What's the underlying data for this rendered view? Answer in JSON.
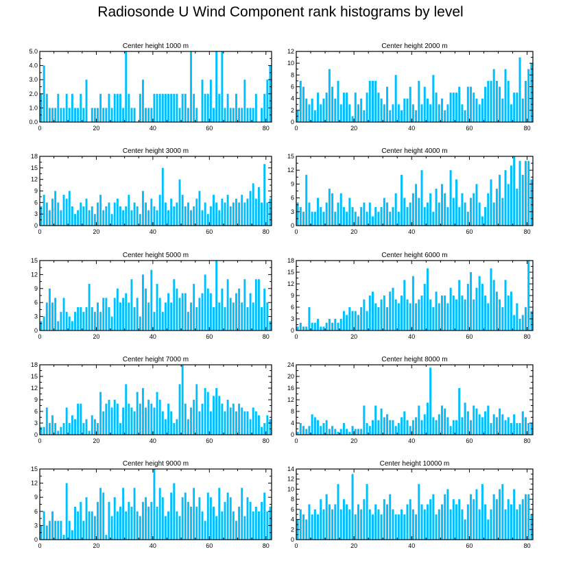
{
  "title": "Radiosonde U Wind Component rank histograms by level",
  "bar_color": "#00bfff",
  "chart_data": [
    {
      "type": "bar",
      "title": "Center height 1000 m",
      "xlim": [
        0,
        82
      ],
      "ylim": [
        0,
        5
      ],
      "xticks": [
        {
          "value": 0,
          "label": "0"
        },
        {
          "value": 20,
          "label": "20"
        },
        {
          "value": 40,
          "label": "40"
        },
        {
          "value": 60,
          "label": "60"
        },
        {
          "value": 80,
          "label": "80"
        }
      ],
      "yticks": [
        {
          "value": 0,
          "label": "0.0"
        },
        {
          "value": 1,
          "label": "1.0"
        },
        {
          "value": 2,
          "label": "2.0"
        },
        {
          "value": 3,
          "label": "3.0"
        },
        {
          "value": 4,
          "label": "4.0"
        },
        {
          "value": 5,
          "label": "5.0"
        }
      ],
      "yaxis_side": "left",
      "values": [
        2,
        4,
        2,
        1,
        1,
        1,
        2,
        1,
        1,
        2,
        1,
        2,
        1,
        1,
        2,
        1,
        3,
        0,
        1,
        1,
        1,
        2,
        1,
        1,
        2,
        1,
        2,
        2,
        2,
        1,
        5,
        2,
        1,
        1,
        0,
        2,
        3,
        1,
        1,
        1,
        2,
        2,
        2,
        2,
        2,
        2,
        2,
        2,
        2,
        1,
        2,
        2,
        1,
        5,
        2,
        1,
        0,
        3,
        2,
        2,
        3,
        1,
        5,
        2,
        5,
        1,
        2,
        1,
        1,
        2,
        1,
        1,
        3,
        1,
        1,
        1,
        2,
        0,
        1,
        2,
        3,
        4
      ]
    },
    {
      "type": "bar",
      "title": "Center height 2000 m",
      "xlim": [
        0,
        82
      ],
      "ylim": [
        0,
        12
      ],
      "xticks": [
        {
          "value": 0,
          "label": "0"
        },
        {
          "value": 20,
          "label": "20"
        },
        {
          "value": 40,
          "label": "40"
        },
        {
          "value": 60,
          "label": "60"
        },
        {
          "value": 80,
          "label": "80"
        }
      ],
      "yticks": [
        {
          "value": 0,
          "label": "0"
        },
        {
          "value": 2,
          "label": "2"
        },
        {
          "value": 4,
          "label": "4"
        },
        {
          "value": 6,
          "label": "6"
        },
        {
          "value": 8,
          "label": "8"
        },
        {
          "value": 10,
          "label": "10"
        },
        {
          "value": 12,
          "label": "12"
        }
      ],
      "yaxis_side": "right",
      "values": [
        2,
        7,
        6,
        4,
        3,
        4,
        2,
        5,
        3,
        4,
        5,
        9,
        6,
        4,
        7,
        3,
        5,
        5,
        3,
        1,
        5,
        3,
        4,
        2,
        5,
        7,
        7,
        7,
        5,
        4,
        3,
        6,
        2,
        3,
        8,
        3,
        2,
        4,
        4,
        6,
        3,
        2,
        7,
        3,
        6,
        4,
        3,
        8,
        5,
        3,
        4,
        2,
        3,
        5,
        5,
        5,
        6,
        3,
        2,
        6,
        6,
        5,
        4,
        3,
        4,
        6,
        7,
        7,
        9,
        7,
        6,
        4,
        9,
        7,
        3,
        5,
        5,
        11,
        4,
        7,
        9,
        10
      ]
    },
    {
      "type": "bar",
      "title": "Center height 3000 m",
      "xlim": [
        0,
        82
      ],
      "ylim": [
        0,
        18
      ],
      "xticks": [
        {
          "value": 0,
          "label": "0"
        },
        {
          "value": 20,
          "label": "20"
        },
        {
          "value": 40,
          "label": "40"
        },
        {
          "value": 60,
          "label": "60"
        },
        {
          "value": 80,
          "label": "80"
        }
      ],
      "yticks": [
        {
          "value": 0,
          "label": "0"
        },
        {
          "value": 3,
          "label": "3"
        },
        {
          "value": 6,
          "label": "6"
        },
        {
          "value": 9,
          "label": "9"
        },
        {
          "value": 12,
          "label": "12"
        },
        {
          "value": 15,
          "label": "15"
        },
        {
          "value": 18,
          "label": "18"
        }
      ],
      "yaxis_side": "left",
      "values": [
        5,
        8,
        6,
        4,
        7,
        9,
        6,
        4,
        8,
        7,
        9,
        5,
        3,
        4,
        6,
        5,
        7,
        4,
        5,
        3,
        6,
        8,
        4,
        5,
        6,
        3,
        6,
        7,
        5,
        4,
        5,
        8,
        4,
        6,
        5,
        3,
        9,
        6,
        4,
        7,
        5,
        4,
        8,
        15,
        6,
        4,
        7,
        5,
        6,
        12,
        8,
        5,
        6,
        4,
        5,
        7,
        9,
        4,
        6,
        3,
        5,
        8,
        6,
        4,
        7,
        6,
        8,
        5,
        6,
        7,
        6,
        8,
        6,
        7,
        9,
        11,
        7,
        10,
        6,
        16,
        6,
        7
      ]
    },
    {
      "type": "bar",
      "title": "Center height 4000 m",
      "xlim": [
        0,
        82
      ],
      "ylim": [
        0,
        15
      ],
      "xticks": [
        {
          "value": 0,
          "label": "0"
        },
        {
          "value": 20,
          "label": "20"
        },
        {
          "value": 40,
          "label": "40"
        },
        {
          "value": 60,
          "label": "60"
        },
        {
          "value": 80,
          "label": "80"
        }
      ],
      "yticks": [
        {
          "value": 0,
          "label": "0"
        },
        {
          "value": 3,
          "label": "3"
        },
        {
          "value": 6,
          "label": "6"
        },
        {
          "value": 9,
          "label": "9"
        },
        {
          "value": 12,
          "label": "12"
        },
        {
          "value": 15,
          "label": "15"
        }
      ],
      "yaxis_side": "right",
      "values": [
        5,
        4,
        3,
        11,
        5,
        3,
        3,
        6,
        4,
        3,
        5,
        8,
        7,
        3,
        5,
        7,
        4,
        3,
        6,
        4,
        3,
        2,
        4,
        5,
        3,
        5,
        2,
        4,
        3,
        4,
        6,
        5,
        3,
        4,
        7,
        3,
        11,
        6,
        4,
        5,
        7,
        9,
        6,
        12,
        4,
        5,
        7,
        3,
        8,
        5,
        9,
        7,
        4,
        12,
        6,
        10,
        4,
        7,
        5,
        3,
        6,
        7,
        9,
        5,
        2,
        4,
        7,
        10,
        5,
        8,
        11,
        6,
        12,
        9,
        13,
        15,
        8,
        14,
        11,
        14,
        14,
        10
      ]
    },
    {
      "type": "bar",
      "title": "Center height 5000 m",
      "xlim": [
        0,
        82
      ],
      "ylim": [
        0,
        15
      ],
      "xticks": [
        {
          "value": 0,
          "label": "0"
        },
        {
          "value": 20,
          "label": "20"
        },
        {
          "value": 40,
          "label": "40"
        },
        {
          "value": 60,
          "label": "60"
        },
        {
          "value": 80,
          "label": "80"
        }
      ],
      "yticks": [
        {
          "value": 0,
          "label": "0"
        },
        {
          "value": 3,
          "label": "3"
        },
        {
          "value": 6,
          "label": "6"
        },
        {
          "value": 9,
          "label": "9"
        },
        {
          "value": 12,
          "label": "12"
        },
        {
          "value": 15,
          "label": "15"
        }
      ],
      "yaxis_side": "left",
      "values": [
        2,
        3,
        6,
        9,
        6,
        7,
        2,
        4,
        7,
        4,
        3,
        2,
        4,
        5,
        5,
        4,
        5,
        10,
        5,
        4,
        6,
        4,
        7,
        7,
        5,
        3,
        7,
        9,
        6,
        7,
        8,
        6,
        11,
        5,
        7,
        3,
        12,
        9,
        6,
        13,
        4,
        10,
        7,
        4,
        6,
        8,
        6,
        11,
        9,
        7,
        8,
        8,
        4,
        6,
        10,
        5,
        7,
        8,
        12,
        9,
        8,
        5,
        15,
        6,
        9,
        5,
        11,
        7,
        6,
        8,
        9,
        6,
        11,
        5,
        8,
        6,
        11,
        11,
        5,
        9,
        6,
        2
      ]
    },
    {
      "type": "bar",
      "title": "Center height 6000 m",
      "xlim": [
        0,
        82
      ],
      "ylim": [
        0,
        18
      ],
      "xticks": [
        {
          "value": 0,
          "label": "0"
        },
        {
          "value": 20,
          "label": "20"
        },
        {
          "value": 40,
          "label": "40"
        },
        {
          "value": 60,
          "label": "60"
        },
        {
          "value": 80,
          "label": "80"
        }
      ],
      "yticks": [
        {
          "value": 0,
          "label": "0"
        },
        {
          "value": 3,
          "label": "3"
        },
        {
          "value": 6,
          "label": "6"
        },
        {
          "value": 9,
          "label": "9"
        },
        {
          "value": 12,
          "label": "12"
        },
        {
          "value": 15,
          "label": "15"
        },
        {
          "value": 18,
          "label": "18"
        }
      ],
      "yaxis_side": "right",
      "values": [
        1,
        2,
        1,
        1,
        6,
        2,
        2,
        3,
        1,
        1,
        2,
        3,
        2,
        3,
        2,
        3,
        5,
        4,
        6,
        5,
        5,
        4,
        6,
        8,
        5,
        9,
        10,
        7,
        6,
        8,
        9,
        6,
        10,
        11,
        8,
        7,
        9,
        13,
        8,
        7,
        14,
        7,
        8,
        9,
        12,
        16,
        8,
        6,
        10,
        7,
        9,
        9,
        7,
        11,
        9,
        8,
        13,
        9,
        8,
        12,
        15,
        8,
        11,
        14,
        12,
        9,
        7,
        16,
        13,
        10,
        8,
        6,
        13,
        9,
        10,
        4,
        7,
        3,
        4,
        6,
        18,
        5
      ]
    },
    {
      "type": "bar",
      "title": "Center height 7000 m",
      "xlim": [
        0,
        82
      ],
      "ylim": [
        0,
        18
      ],
      "xticks": [
        {
          "value": 0,
          "label": "0"
        },
        {
          "value": 20,
          "label": "20"
        },
        {
          "value": 40,
          "label": "40"
        },
        {
          "value": 60,
          "label": "60"
        },
        {
          "value": 80,
          "label": "80"
        }
      ],
      "yticks": [
        {
          "value": 0,
          "label": "0"
        },
        {
          "value": 3,
          "label": "3"
        },
        {
          "value": 6,
          "label": "6"
        },
        {
          "value": 9,
          "label": "9"
        },
        {
          "value": 12,
          "label": "12"
        },
        {
          "value": 15,
          "label": "15"
        },
        {
          "value": 18,
          "label": "18"
        }
      ],
      "yaxis_side": "left",
      "values": [
        2,
        2,
        7,
        3,
        5,
        3,
        1,
        2,
        3,
        7,
        3,
        5,
        4,
        8,
        8,
        3,
        4,
        1,
        5,
        4,
        3,
        11,
        6,
        8,
        9,
        7,
        9,
        8,
        3,
        7,
        13,
        8,
        7,
        6,
        11,
        8,
        12,
        7,
        9,
        8,
        7,
        11,
        9,
        6,
        4,
        8,
        6,
        3,
        4,
        13,
        18,
        8,
        4,
        7,
        9,
        13,
        6,
        8,
        12,
        11,
        6,
        10,
        12,
        10,
        8,
        6,
        9,
        7,
        8,
        6,
        8,
        7,
        6,
        6,
        4,
        7,
        6,
        5,
        2,
        3,
        5,
        4
      ]
    },
    {
      "type": "bar",
      "title": "Center height 8000 m",
      "xlim": [
        0,
        82
      ],
      "ylim": [
        0,
        24
      ],
      "xticks": [
        {
          "value": 0,
          "label": "0"
        },
        {
          "value": 20,
          "label": "20"
        },
        {
          "value": 40,
          "label": "40"
        },
        {
          "value": 60,
          "label": "60"
        },
        {
          "value": 80,
          "label": "80"
        }
      ],
      "yticks": [
        {
          "value": 0,
          "label": "0"
        },
        {
          "value": 4,
          "label": "4"
        },
        {
          "value": 8,
          "label": "8"
        },
        {
          "value": 12,
          "label": "12"
        },
        {
          "value": 16,
          "label": "16"
        },
        {
          "value": 20,
          "label": "20"
        },
        {
          "value": 24,
          "label": "24"
        }
      ],
      "yaxis_side": "right",
      "values": [
        1,
        4,
        3,
        2,
        3,
        7,
        6,
        5,
        3,
        4,
        5,
        2,
        3,
        2,
        1,
        2,
        4,
        2,
        1,
        3,
        2,
        2,
        2,
        10,
        4,
        3,
        5,
        10,
        5,
        9,
        6,
        7,
        5,
        5,
        3,
        4,
        6,
        8,
        5,
        3,
        5,
        6,
        10,
        5,
        7,
        11,
        23,
        6,
        5,
        7,
        10,
        9,
        6,
        3,
        5,
        5,
        16,
        6,
        11,
        8,
        5,
        10,
        9,
        7,
        6,
        8,
        10,
        4,
        7,
        6,
        9,
        7,
        5,
        6,
        4,
        7,
        4,
        4,
        8,
        6,
        4,
        4
      ]
    },
    {
      "type": "bar",
      "title": "Center height 9000 m",
      "xlim": [
        0,
        82
      ],
      "ylim": [
        0,
        15
      ],
      "xticks": [
        {
          "value": 0,
          "label": "0"
        },
        {
          "value": 20,
          "label": "20"
        },
        {
          "value": 40,
          "label": "40"
        },
        {
          "value": 60,
          "label": "60"
        },
        {
          "value": 80,
          "label": "80"
        }
      ],
      "yticks": [
        {
          "value": 0,
          "label": "0"
        },
        {
          "value": 3,
          "label": "3"
        },
        {
          "value": 6,
          "label": "6"
        },
        {
          "value": 9,
          "label": "9"
        },
        {
          "value": 12,
          "label": "12"
        },
        {
          "value": 15,
          "label": "15"
        }
      ],
      "yaxis_side": "left",
      "values": [
        3,
        6,
        3,
        4,
        6,
        4,
        4,
        4,
        1,
        12,
        4,
        2,
        7,
        6,
        8,
        4,
        9,
        6,
        6,
        5,
        8,
        11,
        10,
        1,
        8,
        5,
        9,
        6,
        7,
        11,
        6,
        8,
        7,
        11,
        6,
        5,
        8,
        9,
        7,
        8,
        15,
        7,
        11,
        9,
        5,
        6,
        10,
        12,
        6,
        5,
        9,
        10,
        8,
        7,
        11,
        7,
        9,
        6,
        4,
        10,
        9,
        7,
        5,
        11,
        6,
        8,
        10,
        9,
        6,
        4,
        7,
        11,
        5,
        9,
        8,
        6,
        7,
        6,
        8,
        10,
        6,
        7
      ]
    },
    {
      "type": "bar",
      "title": "Center height 10000 m",
      "xlim": [
        0,
        82
      ],
      "ylim": [
        0,
        14
      ],
      "xticks": [
        {
          "value": 0,
          "label": "0"
        },
        {
          "value": 20,
          "label": "20"
        },
        {
          "value": 40,
          "label": "40"
        },
        {
          "value": 60,
          "label": "60"
        },
        {
          "value": 80,
          "label": "80"
        }
      ],
      "yticks": [
        {
          "value": 0,
          "label": "0"
        },
        {
          "value": 2,
          "label": "2"
        },
        {
          "value": 4,
          "label": "4"
        },
        {
          "value": 6,
          "label": "6"
        },
        {
          "value": 8,
          "label": "8"
        },
        {
          "value": 10,
          "label": "10"
        },
        {
          "value": 12,
          "label": "12"
        },
        {
          "value": 14,
          "label": "14"
        }
      ],
      "yaxis_side": "right",
      "values": [
        4,
        6,
        5,
        4,
        7,
        5,
        6,
        5,
        8,
        6,
        9,
        7,
        6,
        7,
        11,
        6,
        8,
        7,
        6,
        13,
        5,
        7,
        6,
        8,
        11,
        6,
        5,
        7,
        6,
        5,
        8,
        7,
        9,
        6,
        5,
        5,
        6,
        5,
        7,
        8,
        6,
        5,
        11,
        7,
        6,
        7,
        8,
        9,
        5,
        6,
        7,
        9,
        10,
        6,
        8,
        7,
        8,
        6,
        4,
        7,
        9,
        8,
        10,
        6,
        11,
        7,
        4,
        6,
        9,
        8,
        10,
        11,
        6,
        8,
        7,
        10,
        6,
        7,
        8,
        9,
        9,
        5
      ]
    }
  ]
}
